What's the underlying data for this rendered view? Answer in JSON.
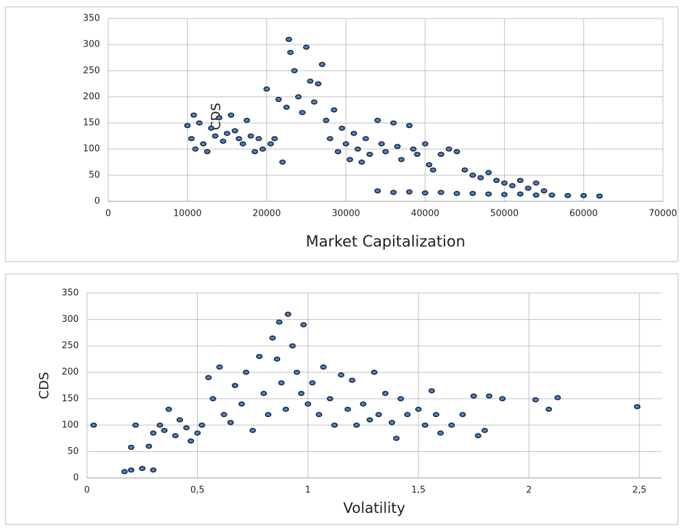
{
  "chart_data": [
    {
      "type": "scatter",
      "xlabel": "Market Capitalization",
      "ylabel": "CDS",
      "color": "#4f81bd",
      "edge": "#17233d",
      "grid": true,
      "xlim": [
        0,
        70000
      ],
      "ylim": [
        0,
        350
      ],
      "xticks": [
        0,
        10000,
        20000,
        30000,
        40000,
        50000,
        60000,
        70000
      ],
      "yticks": [
        0,
        50,
        100,
        150,
        200,
        250,
        300,
        350
      ],
      "x": [
        10000,
        10500,
        10800,
        11000,
        11500,
        12000,
        12500,
        13000,
        13500,
        14000,
        14500,
        15000,
        15500,
        16000,
        16500,
        17000,
        17500,
        18000,
        18500,
        19000,
        19500,
        20000,
        20500,
        21000,
        21500,
        22000,
        22500,
        22800,
        23000,
        23500,
        24000,
        24500,
        25000,
        25500,
        26000,
        26500,
        27000,
        27500,
        28000,
        28500,
        29000,
        29500,
        30000,
        30500,
        31000,
        31500,
        32000,
        32500,
        33000,
        34000,
        34500,
        35000,
        36000,
        36500,
        37000,
        38000,
        38500,
        39000,
        40000,
        40500,
        41000,
        42000,
        43000,
        44000,
        45000,
        46000,
        47000,
        48000,
        49000,
        50000,
        51000,
        52000,
        53000,
        54000,
        55000,
        34000,
        36000,
        38000,
        40000,
        42000,
        44000,
        46000,
        48000,
        50000,
        52000,
        54000,
        56000,
        58000,
        60000,
        62000
      ],
      "values": [
        145,
        120,
        165,
        100,
        150,
        110,
        95,
        140,
        125,
        160,
        115,
        130,
        165,
        135,
        120,
        110,
        155,
        125,
        95,
        120,
        100,
        215,
        110,
        120,
        195,
        75,
        180,
        310,
        285,
        250,
        200,
        170,
        295,
        230,
        190,
        225,
        262,
        155,
        120,
        175,
        95,
        140,
        110,
        80,
        130,
        100,
        75,
        120,
        90,
        155,
        110,
        95,
        150,
        105,
        80,
        145,
        100,
        90,
        110,
        70,
        60,
        90,
        100,
        95,
        60,
        50,
        45,
        55,
        40,
        35,
        30,
        40,
        25,
        35,
        20,
        20,
        17,
        18,
        16,
        17,
        15,
        15,
        14,
        13,
        14,
        12,
        12,
        11,
        11,
        10
      ]
    },
    {
      "type": "scatter",
      "xlabel": "Volatility",
      "ylabel": "CDS",
      "color": "#4f81bd",
      "edge": "#17233d",
      "grid": true,
      "xlim": [
        0,
        2.6
      ],
      "ylim": [
        0,
        350
      ],
      "xticks": [
        0,
        {
          "value": 0.5,
          "label": "0,5"
        },
        1,
        {
          "value": 1.5,
          "label": "1,5"
        },
        2,
        {
          "value": 2.5,
          "label": "2,5"
        }
      ],
      "yticks": [
        0,
        50,
        100,
        150,
        200,
        250,
        300,
        350
      ],
      "x": [
        0.03,
        0.17,
        0.2,
        0.25,
        0.3,
        0.22,
        0.2,
        0.28,
        0.3,
        0.33,
        0.35,
        0.37,
        0.4,
        0.42,
        0.45,
        0.47,
        0.5,
        0.52,
        0.55,
        0.57,
        0.6,
        0.62,
        0.65,
        0.67,
        0.7,
        0.72,
        0.75,
        0.78,
        0.8,
        0.82,
        0.84,
        0.86,
        0.87,
        0.88,
        0.9,
        0.91,
        0.93,
        0.95,
        0.97,
        0.98,
        1.0,
        1.02,
        1.05,
        1.07,
        1.1,
        1.12,
        1.15,
        1.18,
        1.2,
        1.22,
        1.25,
        1.28,
        1.3,
        1.32,
        1.35,
        1.38,
        1.4,
        1.42,
        1.45,
        1.5,
        1.53,
        1.56,
        1.58,
        1.6,
        1.65,
        1.7,
        1.75,
        1.77,
        1.8,
        1.82,
        1.88,
        2.03,
        2.09,
        2.13,
        2.49
      ],
      "values": [
        100,
        12,
        15,
        18,
        15,
        100,
        58,
        60,
        85,
        100,
        90,
        130,
        80,
        110,
        95,
        70,
        85,
        100,
        190,
        150,
        210,
        120,
        105,
        175,
        140,
        200,
        90,
        230,
        160,
        120,
        265,
        225,
        295,
        180,
        130,
        310,
        250,
        200,
        160,
        290,
        140,
        180,
        120,
        210,
        150,
        100,
        195,
        130,
        185,
        100,
        140,
        110,
        200,
        120,
        160,
        105,
        75,
        150,
        120,
        130,
        100,
        165,
        120,
        85,
        100,
        120,
        155,
        80,
        90,
        155,
        150,
        148,
        130,
        152,
        135
      ]
    }
  ]
}
